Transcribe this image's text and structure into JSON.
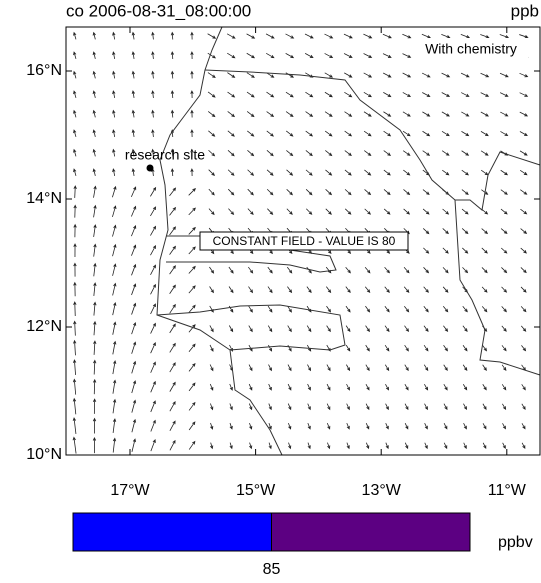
{
  "header": {
    "title": "co 2006-08-31_08:00:00",
    "units": "ppb"
  },
  "map": {
    "annotation": "With chemistry",
    "site_label": "research site",
    "constant_field": "CONSTANT FIELD - VALUE IS 80",
    "lat_ticks": [
      {
        "value": 16,
        "label": "16°N"
      },
      {
        "value": 14,
        "label": "14°N"
      },
      {
        "value": 12,
        "label": "12°N"
      },
      {
        "value": 10,
        "label": "10°N"
      }
    ],
    "lon_ticks": [
      {
        "value": -17,
        "label": "17°W"
      },
      {
        "value": -15,
        "label": "15°W"
      },
      {
        "value": -13,
        "label": "13°W"
      },
      {
        "value": -11,
        "label": "11°W"
      }
    ],
    "colorbar": {
      "colors": [
        "#0000ff",
        "#5c0082"
      ],
      "labels": [
        "85"
      ],
      "units": "ppbv"
    }
  }
}
